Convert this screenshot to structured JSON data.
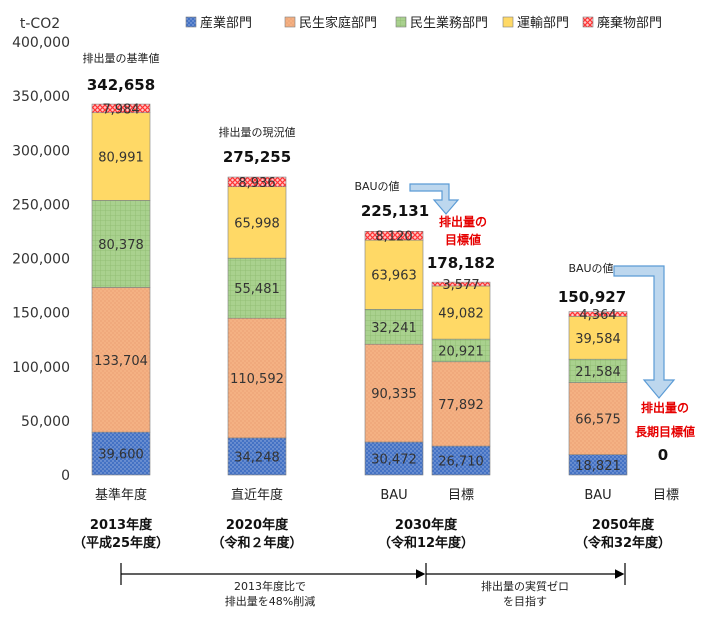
{
  "chart_data": {
    "type": "bar",
    "stacked": true,
    "unit_label": "t-CO2",
    "ylim": [
      0,
      400000
    ],
    "yticks": [
      "0",
      "50,000",
      "100,000",
      "150,000",
      "200,000",
      "250,000",
      "300,000",
      "350,000",
      "400,000"
    ],
    "legend": [
      {
        "name": "産業部門",
        "color": "#4472c4",
        "pattern": "dots"
      },
      {
        "name": "民生家庭部門",
        "color": "#f4b183",
        "pattern": "dots"
      },
      {
        "name": "民生業務部門",
        "color": "#a9d18e",
        "pattern": "grid"
      },
      {
        "name": "運輸部門",
        "color": "#ffd966",
        "pattern": "solid"
      },
      {
        "name": "廃棄物部門",
        "color": "#ff6666",
        "pattern": "cross"
      }
    ],
    "categories": [
      "基準年度",
      "直近年度",
      "BAU",
      "目標",
      "BAU",
      "目標"
    ],
    "series": [
      {
        "name": "産業部門",
        "values": [
          39600,
          34248,
          30472,
          26710,
          18821,
          0
        ],
        "labels": [
          "39,600",
          "34,248",
          "30,472",
          "26,710",
          "18,821",
          ""
        ]
      },
      {
        "name": "民生家庭部門",
        "values": [
          133704,
          110592,
          90335,
          77892,
          66575,
          0
        ],
        "labels": [
          "133,704",
          "110,592",
          "90,335",
          "77,892",
          "66,575",
          ""
        ]
      },
      {
        "name": "民生業務部門",
        "values": [
          80378,
          55481,
          32241,
          20921,
          21584,
          0
        ],
        "labels": [
          "80,378",
          "55,481",
          "32,241",
          "20,921",
          "21,584",
          ""
        ]
      },
      {
        "name": "運輸部門",
        "values": [
          80991,
          65998,
          63963,
          49082,
          39584,
          0
        ],
        "labels": [
          "80,991",
          "65,998",
          "63,963",
          "49,082",
          "39,584",
          ""
        ]
      },
      {
        "name": "廃棄物部門",
        "values": [
          7984,
          8936,
          8120,
          3577,
          4364,
          0
        ],
        "labels": [
          "7,984",
          "8,936",
          "8,120",
          "3,577",
          "4,364",
          ""
        ]
      }
    ],
    "totals": [
      "342,658",
      "275,255",
      "225,131",
      "178,182",
      "150,927",
      "0"
    ],
    "annotations": {
      "base_note": "排出量の基準値",
      "current_note": "排出量の現況値",
      "bau2030_note": "BAUの値",
      "target2030_note": [
        "排出量の",
        "目標値"
      ],
      "bau2050_note": "BAUの値",
      "target2050_note": [
        "排出量の",
        "長期目標値"
      ]
    },
    "year_groups": [
      {
        "year": "2013年度",
        "era": "（平成25年度）"
      },
      {
        "year": "2020年度",
        "era": "（令和２年度）"
      },
      {
        "year": "2030年度",
        "era": "（令和12年度）"
      },
      {
        "year": "2050年度",
        "era": "（令和32年度）"
      }
    ],
    "bottom_notes": [
      {
        "lines": [
          "2013年度比で",
          "排出量を48%削減"
        ]
      },
      {
        "lines": [
          "排出量の実質ゼロ",
          "を目指す"
        ]
      }
    ]
  }
}
